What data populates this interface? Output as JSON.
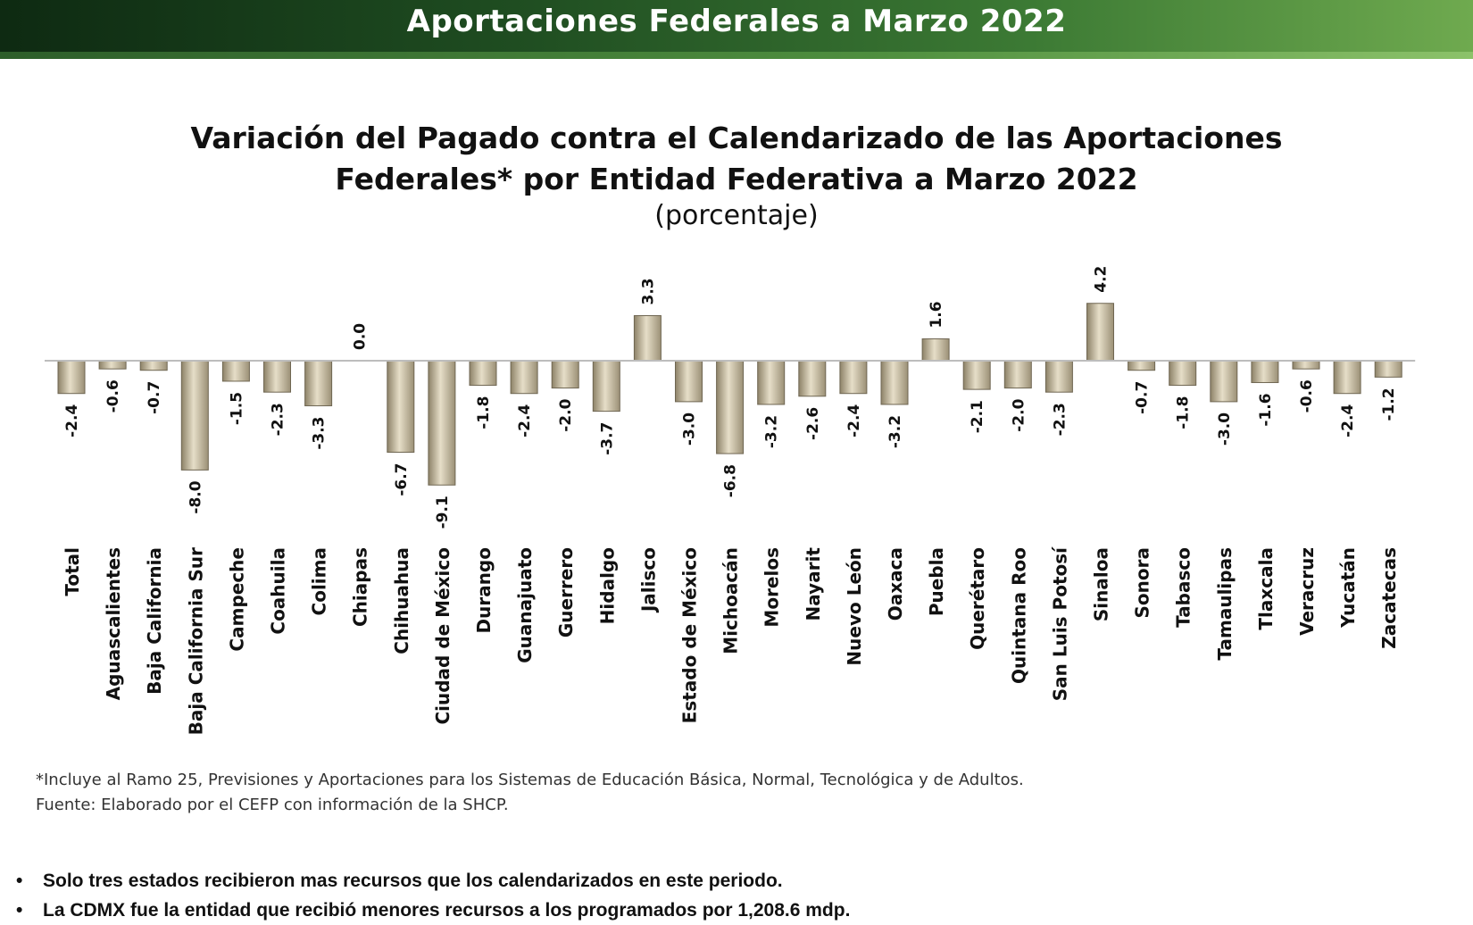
{
  "header": {
    "title": "Aportaciones Federales a Marzo 2022"
  },
  "chart_data": {
    "type": "bar",
    "title": "Variación del Pagado contra el Calendarizado de las Aportaciones Federales* por Entidad Federativa a Marzo 2022",
    "subtitle": "(porcentaje)",
    "categories": [
      "Total",
      "Aguascalientes",
      "Baja California",
      "Baja California Sur",
      "Campeche",
      "Coahuila",
      "Colima",
      "Chiapas",
      "Chihuahua",
      "Ciudad de México",
      "Durango",
      "Guanajuato",
      "Guerrero",
      "Hidalgo",
      "Jalisco",
      "Estado de México",
      "Michoacán",
      "Morelos",
      "Nayarit",
      "Nuevo León",
      "Oaxaca",
      "Puebla",
      "Querétaro",
      "Quintana Roo",
      "San Luis Potosí",
      "Sinaloa",
      "Sonora",
      "Tabasco",
      "Tamaulipas",
      "Tlaxcala",
      "Veracruz",
      "Yucatán",
      "Zacatecas"
    ],
    "values": [
      -2.4,
      -0.6,
      -0.7,
      -8.0,
      -1.5,
      -2.3,
      -3.3,
      0.0,
      -6.7,
      -9.1,
      -1.8,
      -2.4,
      -2.0,
      -3.7,
      3.3,
      -3.0,
      -6.8,
      -3.2,
      -2.6,
      -2.4,
      -3.2,
      1.6,
      -2.1,
      -2.0,
      -2.3,
      4.2,
      -0.7,
      -1.8,
      -3.0,
      -1.6,
      -0.6,
      -2.4,
      -1.2
    ],
    "value_labels": [
      "-2.4",
      "-0.6",
      "-0.7",
      "-8.0",
      "-1.5",
      "-2.3",
      "-3.3",
      "0.0",
      "-6.7",
      "-9.1",
      "-1.8",
      "-2.4",
      "-2.0",
      "-3.7",
      "3.3",
      "-3.0",
      "-6.8",
      "-3.2",
      "-2.6",
      "-2.4",
      "-3.2",
      "1.6",
      "-2.1",
      "-2.0",
      "-2.3",
      "4.2",
      "-0.7",
      "-1.8",
      "-3.0",
      "-1.6",
      "-0.6",
      "-2.4",
      "-1.2"
    ],
    "xlabel": "",
    "ylabel": "",
    "ylim": [
      -9.1,
      4.2
    ],
    "grid": false,
    "legend": "none",
    "bar_color": "#c9bfa4"
  },
  "notes": {
    "footnote": "*Incluye al Ramo 25, Previsiones y Aportaciones para los Sistemas de Educación Básica, Normal, Tecnológica y de Adultos.",
    "source": "Fuente: Elaborado por el CEFP con información de la SHCP."
  },
  "bullets": [
    "Solo tres estados recibieron mas recursos que los calendarizados en este periodo.",
    "La CDMX fue la entidad que recibió menores recursos a los programados por 1,208.6 mdp."
  ]
}
